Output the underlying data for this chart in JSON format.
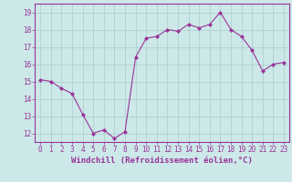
{
  "x": [
    0,
    1,
    2,
    3,
    4,
    5,
    6,
    7,
    8,
    9,
    10,
    11,
    12,
    13,
    14,
    15,
    16,
    17,
    18,
    19,
    20,
    21,
    22,
    23
  ],
  "y": [
    15.1,
    15.0,
    14.6,
    14.3,
    13.1,
    12.0,
    12.2,
    11.7,
    12.1,
    16.4,
    17.5,
    17.6,
    18.0,
    17.9,
    18.3,
    18.1,
    18.3,
    19.0,
    18.0,
    17.6,
    16.8,
    15.6,
    16.0,
    16.1
  ],
  "line_color": "#993399",
  "marker": "D",
  "marker_size": 2.0,
  "bg_color": "#cce8e8",
  "grid_color": "#aacccc",
  "xlabel": "Windchill (Refroidissement éolien,°C)",
  "ylabel": "",
  "ylim": [
    11.5,
    19.5
  ],
  "yticks": [
    12,
    13,
    14,
    15,
    16,
    17,
    18,
    19
  ],
  "xticks": [
    0,
    1,
    2,
    3,
    4,
    5,
    6,
    7,
    8,
    9,
    10,
    11,
    12,
    13,
    14,
    15,
    16,
    17,
    18,
    19,
    20,
    21,
    22,
    23
  ],
  "tick_color": "#993399",
  "tick_fontsize": 5.5,
  "xlabel_fontsize": 6.5,
  "xlabel_color": "#993399"
}
